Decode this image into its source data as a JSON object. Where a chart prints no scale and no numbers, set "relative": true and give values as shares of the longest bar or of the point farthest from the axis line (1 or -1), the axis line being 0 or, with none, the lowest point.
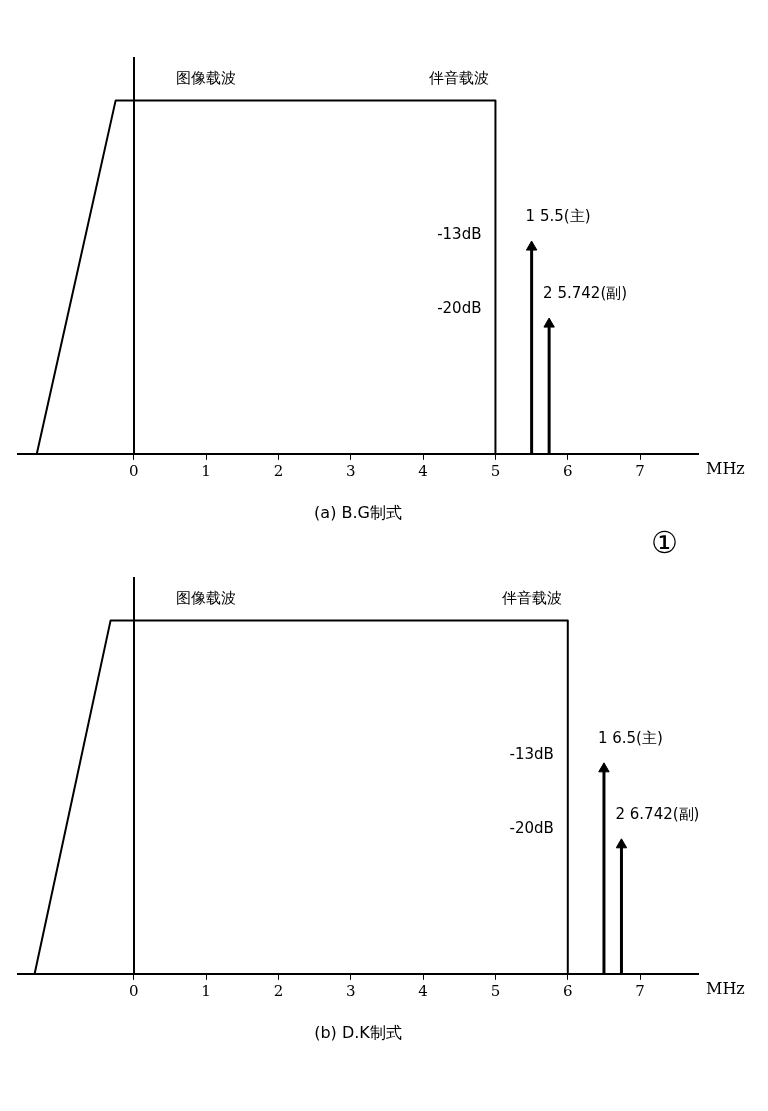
{
  "chart_data": [
    {
      "type": "line",
      "title": "(a) B.G制式",
      "xlabel": "MHz",
      "relative": true,
      "xlim": [
        -1.6,
        7.8
      ],
      "xticks": [
        0,
        1,
        2,
        3,
        4,
        5,
        6,
        7
      ],
      "legend": false,
      "line_style": "solid",
      "series": [
        {
          "color": "#000000",
          "marker": "none",
          "x": [
            -1.34,
            -0.25,
            5,
            5
          ],
          "values": [
            0,
            1,
            1,
            0
          ]
        },
        {
          "type": "lollipop",
          "color": "#000000",
          "marker": "triangle",
          "x": [
            5.5,
            5.742
          ],
          "values": [
            0.585,
            0.367
          ]
        }
      ],
      "annotations": [
        {
          "text": "图像载波",
          "x": 1,
          "y": 1
        },
        {
          "text": "伴音载波",
          "x": 4.5,
          "y": 1
        },
        {
          "text": "-13dB",
          "x": 5,
          "y": 0.62
        },
        {
          "text": "-20dB",
          "x": 5,
          "y": 0.41
        },
        {
          "text": "1 5.5(主)",
          "x": 5.5,
          "y": 0.585
        },
        {
          "text": "2 5.742(副)",
          "x": 5.742,
          "y": 0.367
        }
      ]
    },
    {
      "type": "line",
      "title": "(b) D.K制式",
      "xlabel": "MHz",
      "relative": true,
      "xlim": [
        -1.6,
        7.8
      ],
      "xticks": [
        0,
        1,
        2,
        3,
        4,
        5,
        6,
        7
      ],
      "legend": false,
      "line_style": "solid",
      "series": [
        {
          "color": "#000000",
          "marker": "none",
          "x": [
            -1.37,
            -0.32,
            6,
            6
          ],
          "values": [
            0,
            1,
            1,
            0
          ]
        },
        {
          "type": "lollipop",
          "color": "#000000",
          "marker": "triangle",
          "x": [
            6.5,
            6.742
          ],
          "values": [
            0.58,
            0.365
          ]
        }
      ],
      "annotations": [
        "①",
        {
          "text": "图像载波",
          "x": 1,
          "y": 1
        },
        {
          "text": "伴音载波",
          "x": 5.5,
          "y": 1
        },
        {
          "text": "-13dB",
          "x": 6,
          "y": 0.62
        },
        {
          "text": "-20dB",
          "x": 6,
          "y": 0.41
        },
        {
          "text": "1 6.5(主)",
          "x": 6.5,
          "y": 0.58
        },
        {
          "text": "2 6.742(副)",
          "x": 6.742,
          "y": 0.365
        }
      ]
    }
  ]
}
